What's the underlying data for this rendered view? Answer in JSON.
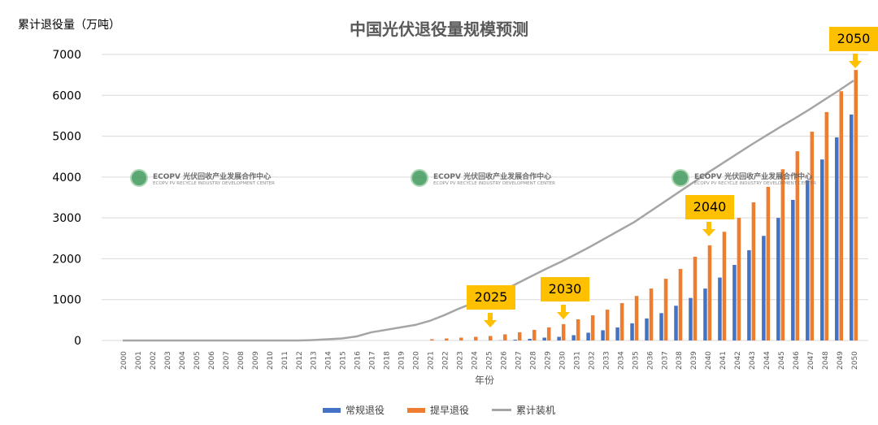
{
  "chart_data": {
    "type": "bar",
    "title": "中国光伏退役量规模预测",
    "ylabel": "累计退役量（万吨）",
    "xlabel": "年份",
    "ylim": [
      0,
      7000
    ],
    "yticks": [
      "0",
      "1000",
      "2000",
      "3000",
      "4000",
      "5000",
      "6000",
      "7000"
    ],
    "grid": true,
    "legend_position": "bottom",
    "categories": [
      "2000",
      "2001",
      "2002",
      "2003",
      "2004",
      "2005",
      "2006",
      "2007",
      "2008",
      "2009",
      "2010",
      "2011",
      "2012",
      "2013",
      "2014",
      "2015",
      "2016",
      "2017",
      "2018",
      "2019",
      "2020",
      "2021",
      "2022",
      "2023",
      "2024",
      "2025",
      "2026",
      "2027",
      "2028",
      "2029",
      "2030",
      "2031",
      "2032",
      "2033",
      "2034",
      "2035",
      "2036",
      "2037",
      "2038",
      "2039",
      "2040",
      "2041",
      "2042",
      "2043",
      "2044",
      "2045",
      "2046",
      "2047",
      "2048",
      "2049",
      "2050"
    ],
    "series": [
      {
        "name": "常规退役",
        "type": "bar",
        "color": "#4472c4",
        "values": [
          0,
          0,
          0,
          0,
          0,
          0,
          0,
          0,
          0,
          0,
          0,
          0,
          0,
          0,
          0,
          0,
          0,
          0,
          0,
          0,
          0,
          0,
          0,
          0,
          0,
          0,
          5,
          20,
          40,
          70,
          90,
          130,
          190,
          250,
          320,
          420,
          540,
          670,
          850,
          1040,
          1270,
          1540,
          1850,
          2210,
          2560,
          3000,
          3440,
          3920,
          4430,
          4970,
          5530
        ]
      },
      {
        "name": "提早退役",
        "type": "bar",
        "color": "#ed7d31",
        "values": [
          0,
          0,
          0,
          0,
          0,
          0,
          0,
          0,
          0,
          0,
          0,
          0,
          0,
          0,
          0,
          0,
          0,
          0,
          0,
          0,
          0,
          30,
          50,
          70,
          90,
          110,
          150,
          200,
          260,
          320,
          400,
          517,
          615,
          755,
          915,
          1090,
          1270,
          1510,
          1750,
          2050,
          2330,
          2660,
          3000,
          3380,
          3760,
          4190,
          4630,
          5110,
          5590,
          6100,
          6620
        ]
      },
      {
        "name": "累计装机",
        "type": "line",
        "color": "#a5a5a5",
        "values": [
          0,
          0,
          0,
          0,
          0,
          0,
          0,
          0,
          0,
          0,
          0,
          0,
          0,
          10,
          30,
          50,
          100,
          200,
          260,
          320,
          380,
          480,
          620,
          780,
          920,
          1050,
          1220,
          1400,
          1580,
          1760,
          1930,
          2110,
          2300,
          2500,
          2700,
          2900,
          3140,
          3380,
          3620,
          3860,
          4100,
          4330,
          4560,
          4790,
          5010,
          5230,
          5440,
          5660,
          5890,
          6120,
          6360
        ]
      }
    ],
    "annotations": [
      "2025",
      "2030",
      "2040",
      "2050"
    ],
    "annotation_color": "#ffc000"
  },
  "watermark": {
    "name": "ECOPV 光伏回收产业发展合作中心",
    "sub": "ECOPV PV RECYCLE INDUSTRY  DEVELOPMENT CENTER"
  }
}
